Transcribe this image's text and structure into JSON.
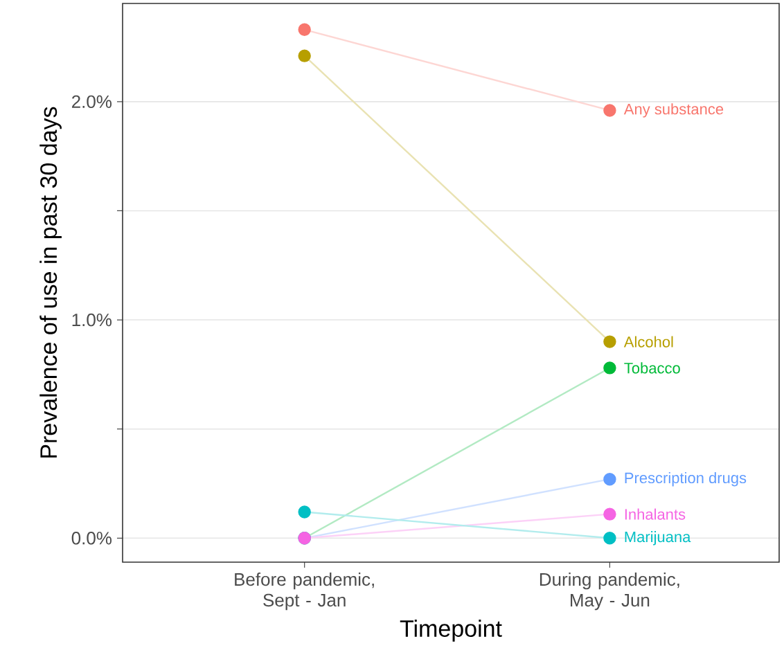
{
  "chart_data": {
    "type": "line",
    "xlabel": "Timepoint",
    "ylabel": "Prevalence of use in past 30 days",
    "categories": [
      "Before pandemic, Sept - Jan",
      "During pandemic, May - Jun"
    ],
    "series": [
      {
        "name": "Any substance",
        "color": "#F8766D",
        "values": [
          2.33,
          1.96
        ]
      },
      {
        "name": "Alcohol",
        "color": "#B79F00",
        "values": [
          2.21,
          0.9
        ]
      },
      {
        "name": "Tobacco",
        "color": "#00BA38",
        "values": [
          0,
          0.78
        ]
      },
      {
        "name": "Prescription drugs",
        "color": "#619CFF",
        "values": [
          0,
          0.27
        ]
      },
      {
        "name": "Inhalants",
        "color": "#F564E3",
        "values": [
          0,
          0.11
        ]
      },
      {
        "name": "Marijuana",
        "color": "#00BFC4",
        "values": [
          0.12,
          0
        ]
      }
    ],
    "ylim": [
      -0.11,
      2.45
    ],
    "yticks": [
      {
        "value": 0,
        "label": "0.0%"
      },
      {
        "value": 0.5,
        "label": null
      },
      {
        "value": 1,
        "label": "1.0%"
      },
      {
        "value": 1.5,
        "label": null
      },
      {
        "value": 2,
        "label": "2.0%"
      }
    ],
    "grid": "y",
    "legend": false,
    "marker": "circle",
    "line_style": "solid"
  }
}
